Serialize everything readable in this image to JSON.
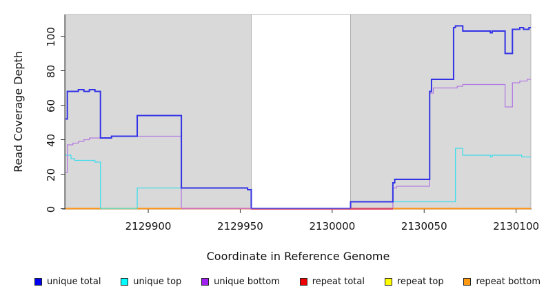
{
  "chart_data": {
    "type": "line",
    "subtype": "step-coverage",
    "title": "",
    "xlabel": "Coordinate in Reference Genome",
    "ylabel": "Read Coverage Depth",
    "xlim": [
      2129855,
      2130108
    ],
    "ylim": [
      0,
      112.6
    ],
    "grid": "off",
    "legend_position": "bottom",
    "xticks": [
      2129900,
      2129950,
      2130000,
      2130050,
      2130100
    ],
    "xtick_labels": [
      "2129900",
      "2129950",
      "2130000",
      "2130050",
      "2130100"
    ],
    "yticks": [
      0,
      20,
      40,
      60,
      80,
      100
    ],
    "ytick_labels": [
      "0",
      "20",
      "40",
      "60",
      "80",
      "100"
    ],
    "background_regions": [
      {
        "name": "covered-left",
        "from": 2129855,
        "to": 2129956,
        "color": "#d9d9d9",
        "border": "#a8a8a8"
      },
      {
        "name": "gap-middle",
        "from": 2129956,
        "to": 2130010,
        "color": "#ffffff",
        "border": "#a8a8a8"
      },
      {
        "name": "covered-right",
        "from": 2130010,
        "to": 2130108,
        "color": "#d9d9d9",
        "border": "#a8a8a8"
      }
    ],
    "series": [
      {
        "name": "repeat top",
        "color": "#f5f500",
        "width": 1.3,
        "steps": [
          [
            2129855,
            0
          ]
        ]
      },
      {
        "name": "repeat total",
        "color": "#e02020",
        "width": 1.3,
        "steps": [
          [
            2129855,
            0
          ]
        ]
      },
      {
        "name": "repeat bottom",
        "color": "#ff9414",
        "width": 1.4,
        "steps": [
          [
            2129855,
            0
          ]
        ]
      },
      {
        "name": "unique top",
        "color": "#40dcec",
        "width": 1.3,
        "steps": [
          [
            2129855,
            31
          ],
          [
            2129858,
            29
          ],
          [
            2129860,
            28
          ],
          [
            2129871,
            27
          ],
          [
            2129874,
            0
          ],
          [
            2129894,
            12
          ],
          [
            2129954,
            11
          ],
          [
            2129956,
            0
          ],
          [
            2130010,
            4
          ],
          [
            2130067,
            35
          ],
          [
            2130071,
            31
          ],
          [
            2130086,
            30
          ],
          [
            2130087,
            31
          ],
          [
            2130103,
            30
          ]
        ]
      },
      {
        "name": "unique bottom",
        "color": "#b47ce2",
        "width": 1.3,
        "steps": [
          [
            2129855,
            21
          ],
          [
            2129856,
            37
          ],
          [
            2129859,
            38
          ],
          [
            2129862,
            39
          ],
          [
            2129865,
            40
          ],
          [
            2129868,
            41
          ],
          [
            2129880,
            42
          ],
          [
            2129918,
            0
          ],
          [
            2130033,
            12
          ],
          [
            2130035,
            13
          ],
          [
            2130053,
            67
          ],
          [
            2130055,
            70
          ],
          [
            2130068,
            71
          ],
          [
            2130071,
            72
          ],
          [
            2130094,
            59
          ],
          [
            2130098,
            73
          ],
          [
            2130102,
            74
          ],
          [
            2130106,
            75
          ]
        ]
      },
      {
        "name": "unique total",
        "color": "#3232e6",
        "width": 2,
        "steps": [
          [
            2129855,
            52
          ],
          [
            2129856,
            68
          ],
          [
            2129862,
            69
          ],
          [
            2129865,
            68
          ],
          [
            2129868,
            69
          ],
          [
            2129871,
            68
          ],
          [
            2129874,
            41
          ],
          [
            2129880,
            42
          ],
          [
            2129894,
            54
          ],
          [
            2129918,
            12
          ],
          [
            2129954,
            11
          ],
          [
            2129956,
            0
          ],
          [
            2130010,
            4
          ],
          [
            2130033,
            15
          ],
          [
            2130034,
            17
          ],
          [
            2130053,
            68
          ],
          [
            2130054,
            75
          ],
          [
            2130066,
            105
          ],
          [
            2130067,
            106
          ],
          [
            2130071,
            103
          ],
          [
            2130086,
            102
          ],
          [
            2130087,
            103
          ],
          [
            2130094,
            90
          ],
          [
            2130098,
            104
          ],
          [
            2130102,
            105
          ],
          [
            2130104,
            104
          ],
          [
            2130107,
            105
          ]
        ]
      }
    ],
    "baseline_segments": [
      {
        "from": 2129956,
        "to": 2130033,
        "color": "#d84058",
        "dy": 1.2
      },
      {
        "from": 2129855,
        "to": 2129874,
        "color": "#ff9414",
        "dy": 0
      },
      {
        "from": 2129874,
        "to": 2129894,
        "color": "#86d2a6",
        "dy": 0
      },
      {
        "from": 2129894,
        "to": 2129918,
        "color": "#ff9414",
        "dy": 0
      },
      {
        "from": 2129918,
        "to": 2129956,
        "color": "#de6cac",
        "dy": 0
      },
      {
        "from": 2129956,
        "to": 2130010,
        "color": "#4545e8",
        "dy": 0
      },
      {
        "from": 2130010,
        "to": 2130033,
        "color": "#d8486e",
        "dy": 0
      },
      {
        "from": 2130033,
        "to": 2130108,
        "color": "#ff9414",
        "dy": 0
      }
    ],
    "legend": [
      {
        "label": "unique total",
        "color": "#0000ee"
      },
      {
        "label": "unique top",
        "color": "#00ffff"
      },
      {
        "label": "unique bottom",
        "color": "#a020f0"
      },
      {
        "label": "repeat total",
        "color": "#ee0000"
      },
      {
        "label": "repeat top",
        "color": "#ffff00"
      },
      {
        "label": "repeat bottom",
        "color": "#ff9912"
      }
    ],
    "axis_color": "#333333"
  }
}
